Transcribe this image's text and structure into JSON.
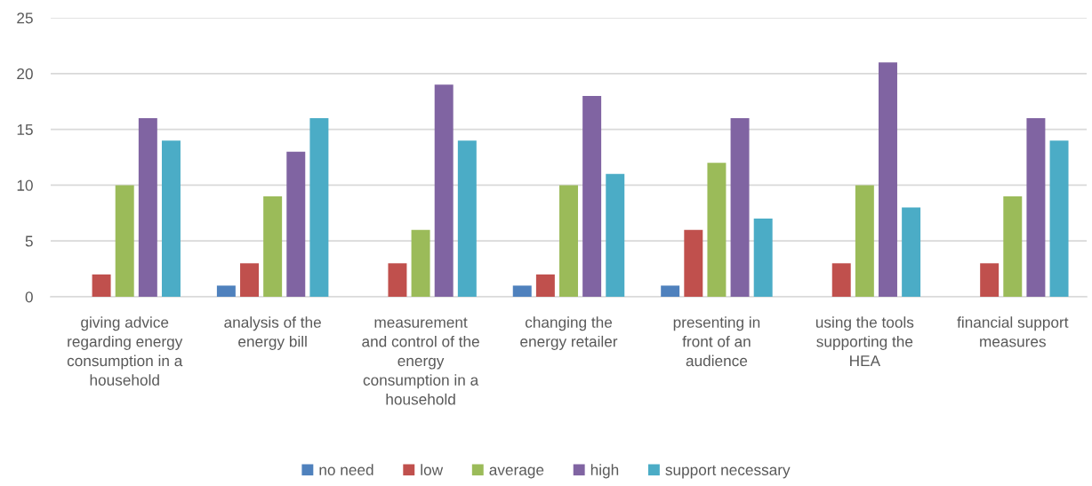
{
  "chart_data": {
    "type": "bar",
    "categories": [
      "giving advice regarding energy consumption in a household",
      "analysis of the energy bill",
      "measurement and control of the energy consumption in a household",
      "changing the energy retailer",
      "presenting in front of an audience",
      "using the tools supporting the HEA",
      "financial support measures"
    ],
    "series": [
      {
        "name": "no need",
        "color": "#4f81bd",
        "values": [
          0,
          1,
          0,
          1,
          1,
          0,
          0
        ]
      },
      {
        "name": "low",
        "color": "#c0504d",
        "values": [
          2,
          3,
          3,
          2,
          6,
          3,
          3
        ]
      },
      {
        "name": "average",
        "color": "#9bbb59",
        "values": [
          10,
          9,
          6,
          10,
          12,
          10,
          9
        ]
      },
      {
        "name": "high",
        "color": "#8064a2",
        "values": [
          16,
          13,
          19,
          18,
          16,
          21,
          16
        ]
      },
      {
        "name": "support necessary",
        "color": "#4bacc6",
        "values": [
          14,
          16,
          14,
          11,
          7,
          8,
          14
        ]
      }
    ],
    "ylim": [
      0,
      25
    ],
    "yticks": [
      0,
      5,
      10,
      15,
      20,
      25
    ],
    "grid": "y",
    "legend": "bottom"
  }
}
